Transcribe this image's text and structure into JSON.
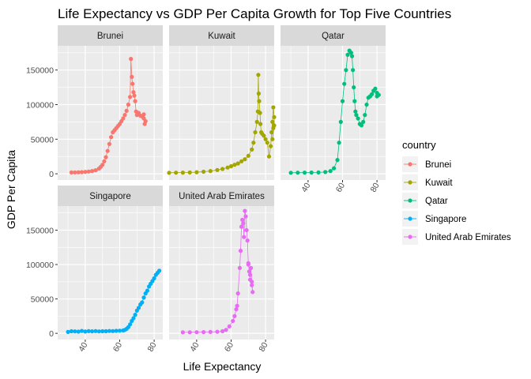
{
  "chart_data": {
    "type": "scatter",
    "title": "Life Expectancy vs GDP Per Capita Growth for Top Five Countries",
    "xlabel": "Life Expectancy",
    "ylabel": "GDP Per Capita",
    "xlim": [
      24,
      85
    ],
    "ylim": [
      -9000,
      185000
    ],
    "x_ticks": [
      40,
      60,
      80
    ],
    "y_ticks": [
      0,
      50000,
      100000,
      150000
    ],
    "y_tick_labels": [
      "0",
      "50000",
      "100000",
      "150000"
    ],
    "legend_title": "country",
    "legend_position": "right",
    "grid": true,
    "facets": [
      {
        "name": "Brunei",
        "color": "#F8766D",
        "points": [
          [
            32,
            2000
          ],
          [
            34,
            2100
          ],
          [
            36,
            2200
          ],
          [
            38,
            2400
          ],
          [
            40,
            2700
          ],
          [
            42,
            3200
          ],
          [
            44,
            4000
          ],
          [
            46,
            5200
          ],
          [
            48,
            7500
          ],
          [
            49,
            10000
          ],
          [
            50,
            13000
          ],
          [
            51,
            18000
          ],
          [
            52,
            24000
          ],
          [
            53,
            33000
          ],
          [
            54,
            43000
          ],
          [
            55,
            53000
          ],
          [
            56,
            60000
          ],
          [
            57,
            63000
          ],
          [
            58,
            66000
          ],
          [
            59,
            69000
          ],
          [
            60,
            72000
          ],
          [
            61,
            76000
          ],
          [
            62,
            80000
          ],
          [
            63,
            85000
          ],
          [
            64,
            91000
          ],
          [
            65,
            100000
          ],
          [
            66,
            111000
          ],
          [
            66.5,
            166000
          ],
          [
            67,
            140000
          ],
          [
            67.5,
            130000
          ],
          [
            68,
            118000
          ],
          [
            68.5,
            113000
          ],
          [
            69,
            105000
          ],
          [
            69.5,
            90000
          ],
          [
            70,
            85000
          ],
          [
            71,
            88000
          ],
          [
            72,
            84000
          ],
          [
            73,
            83000
          ],
          [
            74,
            80000
          ],
          [
            74.5,
            72000
          ],
          [
            75,
            76000
          ],
          [
            74,
            86000
          ]
        ]
      },
      {
        "name": "Kuwait",
        "color": "#A3A500",
        "points": [
          [
            24,
            1500
          ],
          [
            28,
            1600
          ],
          [
            32,
            1700
          ],
          [
            36,
            1900
          ],
          [
            40,
            2300
          ],
          [
            44,
            3000
          ],
          [
            48,
            4000
          ],
          [
            52,
            5500
          ],
          [
            55,
            7000
          ],
          [
            58,
            9000
          ],
          [
            60,
            11000
          ],
          [
            62,
            13000
          ],
          [
            64,
            15000
          ],
          [
            66,
            18000
          ],
          [
            68,
            21000
          ],
          [
            70,
            26000
          ],
          [
            72,
            35000
          ],
          [
            73,
            45000
          ],
          [
            74,
            60000
          ],
          [
            75,
            75000
          ],
          [
            75.5,
            90000
          ],
          [
            75.8,
            143000
          ],
          [
            76,
            116000
          ],
          [
            76.3,
            105000
          ],
          [
            76.8,
            88000
          ],
          [
            77,
            72000
          ],
          [
            77.5,
            60000
          ],
          [
            78,
            58000
          ],
          [
            79,
            55000
          ],
          [
            80,
            50000
          ],
          [
            81,
            45000
          ],
          [
            82,
            25000
          ],
          [
            83,
            40000
          ],
          [
            83.5,
            60000
          ],
          [
            84,
            75000
          ],
          [
            84.5,
            96000
          ],
          [
            85,
            82000
          ],
          [
            85,
            70000
          ],
          [
            84,
            50000
          ],
          [
            84.5,
            66000
          ]
        ]
      },
      {
        "name": "Qatar",
        "color": "#00BF7D",
        "points": [
          [
            30,
            1500
          ],
          [
            34,
            1600
          ],
          [
            38,
            1700
          ],
          [
            42,
            1800
          ],
          [
            46,
            2000
          ],
          [
            50,
            2500
          ],
          [
            53,
            4000
          ],
          [
            55,
            8000
          ],
          [
            57,
            20000
          ],
          [
            58,
            45000
          ],
          [
            59,
            75000
          ],
          [
            60,
            105000
          ],
          [
            61,
            130000
          ],
          [
            62,
            150000
          ],
          [
            63,
            172000
          ],
          [
            64,
            178000
          ],
          [
            65,
            175000
          ],
          [
            65.5,
            170000
          ],
          [
            66,
            150000
          ],
          [
            66.5,
            125000
          ],
          [
            67,
            105000
          ],
          [
            67.5,
            90000
          ],
          [
            68,
            85000
          ],
          [
            69,
            80000
          ],
          [
            70,
            72000
          ],
          [
            71,
            70000
          ],
          [
            72,
            75000
          ],
          [
            73,
            85000
          ],
          [
            74,
            100000
          ],
          [
            75,
            110000
          ],
          [
            76,
            112000
          ],
          [
            77,
            115000
          ],
          [
            78,
            120000
          ],
          [
            79,
            123000
          ],
          [
            80,
            117000
          ],
          [
            81,
            114000
          ],
          [
            80,
            112000
          ]
        ]
      },
      {
        "name": "Singapore",
        "color": "#00B0F6",
        "points": [
          [
            30,
            2000
          ],
          [
            32,
            3000
          ],
          [
            34,
            2800
          ],
          [
            36,
            2500
          ],
          [
            38,
            3500
          ],
          [
            40,
            2600
          ],
          [
            42,
            3200
          ],
          [
            44,
            2900
          ],
          [
            46,
            3300
          ],
          [
            48,
            2800
          ],
          [
            50,
            3100
          ],
          [
            52,
            3000
          ],
          [
            54,
            3400
          ],
          [
            56,
            3300
          ],
          [
            58,
            3600
          ],
          [
            60,
            3800
          ],
          [
            62,
            4200
          ],
          [
            63,
            5000
          ],
          [
            64,
            6500
          ],
          [
            65,
            9000
          ],
          [
            66,
            13000
          ],
          [
            67,
            18000
          ],
          [
            68,
            22000
          ],
          [
            69,
            27000
          ],
          [
            70,
            33000
          ],
          [
            71,
            37000
          ],
          [
            72,
            42000
          ],
          [
            73,
            45000
          ],
          [
            74,
            52000
          ],
          [
            75,
            58000
          ],
          [
            76,
            62000
          ],
          [
            77,
            68000
          ],
          [
            78,
            72000
          ],
          [
            79,
            76000
          ],
          [
            80,
            80000
          ],
          [
            81,
            85000
          ],
          [
            82,
            88000
          ],
          [
            83,
            91000
          ]
        ]
      },
      {
        "name": "United Arab Emirates",
        "color": "#E76BF3",
        "points": [
          [
            32,
            1500
          ],
          [
            36,
            1600
          ],
          [
            40,
            1700
          ],
          [
            44,
            1800
          ],
          [
            48,
            2000
          ],
          [
            52,
            2300
          ],
          [
            55,
            3000
          ],
          [
            57,
            5000
          ],
          [
            59,
            10000
          ],
          [
            61,
            18000
          ],
          [
            62,
            25000
          ],
          [
            63,
            35000
          ],
          [
            63.5,
            40000
          ],
          [
            64,
            58000
          ],
          [
            65,
            95000
          ],
          [
            65.5,
            120000
          ],
          [
            66,
            155000
          ],
          [
            66.5,
            165000
          ],
          [
            67,
            160000
          ],
          [
            67.5,
            140000
          ],
          [
            68,
            178000
          ],
          [
            68.5,
            170000
          ],
          [
            69,
            150000
          ],
          [
            69.5,
            135000
          ],
          [
            70,
            100000
          ],
          [
            70.5,
            90000
          ],
          [
            71,
            85000
          ],
          [
            71.5,
            95000
          ],
          [
            72,
            75000
          ],
          [
            72.5,
            60000
          ],
          [
            72,
            70000
          ],
          [
            71,
            78000
          ],
          [
            70,
            102000
          ]
        ]
      }
    ]
  }
}
